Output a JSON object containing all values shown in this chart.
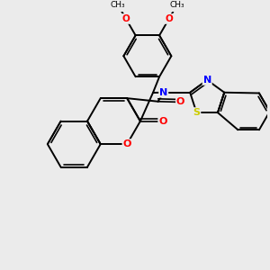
{
  "bg": "#ebebeb",
  "bond_color": "#000000",
  "O_color": "#ff0000",
  "N_color": "#0000ff",
  "S_color": "#cccc00",
  "figsize": [
    3.0,
    3.0
  ],
  "dpi": 100,
  "xlim": [
    -1.5,
    8.5
  ],
  "ylim": [
    -1.0,
    8.5
  ]
}
